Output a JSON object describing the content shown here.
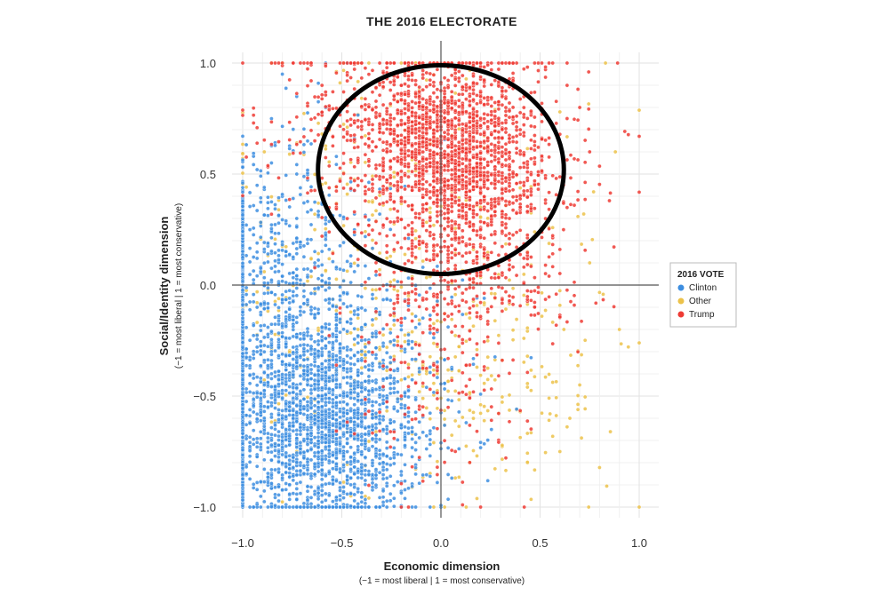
{
  "chart_data": {
    "type": "scatter",
    "title": "THE 2016 ELECTORATE",
    "xlabel": "Economic dimension",
    "xlabel_sub": "(−1 = most liberal | 1 = most conservative)",
    "ylabel": "Social/Identity dimension",
    "ylabel_sub": "(−1 = most liberal | 1 = most conservative)",
    "xlim": [
      -1.0,
      1.0
    ],
    "ylim": [
      -1.0,
      1.0
    ],
    "x_ticks": [
      -1.0,
      -0.5,
      0.0,
      0.5,
      1.0
    ],
    "x_tick_labels": [
      "−1.0",
      "−0.5",
      "0.0",
      "0.5",
      "1.0"
    ],
    "y_ticks": [
      -1.0,
      -0.5,
      0.0,
      0.5,
      1.0
    ],
    "y_tick_labels": [
      "−1.0",
      "−0.5",
      "0.0",
      "0.5",
      "1.0"
    ],
    "grid": true,
    "reference_lines": {
      "x": 0.0,
      "y": 0.0
    },
    "annotation": {
      "type": "ellipse",
      "center": [
        0.0,
        0.52
      ],
      "radius": [
        0.62,
        0.47
      ],
      "color": "#000000"
    },
    "legend": {
      "title": "2016 VOTE",
      "placement": "right",
      "entries": [
        {
          "name": "Clinton",
          "color": "#3d8ee0"
        },
        {
          "name": "Other",
          "color": "#ecc24a"
        },
        {
          "name": "Trump",
          "color": "#ee3b34"
        }
      ]
    },
    "series": [
      {
        "name": "Clinton",
        "color": "#3d8ee0",
        "clusters": [
          {
            "cx": -0.62,
            "cy": -0.66,
            "sx": 0.24,
            "sy": 0.22,
            "n": 1500
          },
          {
            "cx": -0.72,
            "cy": -0.25,
            "sx": 0.2,
            "sy": 0.25,
            "n": 650
          },
          {
            "cx": -0.35,
            "cy": -0.5,
            "sx": 0.28,
            "sy": 0.3,
            "n": 300
          },
          {
            "cx": -0.85,
            "cy": 0.2,
            "sx": 0.14,
            "sy": 0.2,
            "n": 130
          },
          {
            "cx": -0.6,
            "cy": 0.5,
            "sx": 0.25,
            "sy": 0.3,
            "n": 70
          }
        ],
        "edge_column": {
          "x": -1.0,
          "ymin": -1.0,
          "ymax": 0.4,
          "n": 320
        }
      },
      {
        "name": "Other",
        "color": "#ecc24a",
        "clusters": [
          {
            "cx": -0.3,
            "cy": 0.0,
            "sx": 0.45,
            "sy": 0.5,
            "n": 420
          },
          {
            "cx": 0.3,
            "cy": -0.45,
            "sx": 0.3,
            "sy": 0.3,
            "n": 120
          }
        ],
        "outliers": [
          [
            0.83,
            1.0
          ],
          [
            1.0,
            -1.0
          ],
          [
            0.72,
            0.32
          ],
          [
            0.77,
            0.42
          ],
          [
            0.6,
            -0.75
          ],
          [
            0.55,
            -0.58
          ],
          [
            0.65,
            -0.6
          ],
          [
            0.75,
            0.1
          ],
          [
            0.88,
            0.6
          ],
          [
            0.9,
            -0.2
          ],
          [
            0.7,
            -0.45
          ],
          [
            0.62,
            -0.2
          ]
        ]
      },
      {
        "name": "Trump",
        "color": "#ee3b34",
        "clusters": [
          {
            "cx": 0.05,
            "cy": 0.58,
            "sx": 0.22,
            "sy": 0.22,
            "n": 1500
          },
          {
            "cx": -0.3,
            "cy": 0.72,
            "sx": 0.3,
            "sy": 0.22,
            "n": 420
          },
          {
            "cx": 0.15,
            "cy": 0.05,
            "sx": 0.22,
            "sy": 0.25,
            "n": 280
          },
          {
            "cx": -0.05,
            "cy": -0.35,
            "sx": 0.22,
            "sy": 0.3,
            "n": 150
          },
          {
            "cx": 0.35,
            "cy": 0.45,
            "sx": 0.2,
            "sy": 0.3,
            "n": 200
          }
        ],
        "outliers": [
          [
            1.0,
            0.67
          ],
          [
            0.42,
            -1.0
          ],
          [
            0.85,
            0.38
          ],
          [
            0.75,
            0.6
          ],
          [
            0.7,
            0.8
          ]
        ]
      }
    ]
  }
}
